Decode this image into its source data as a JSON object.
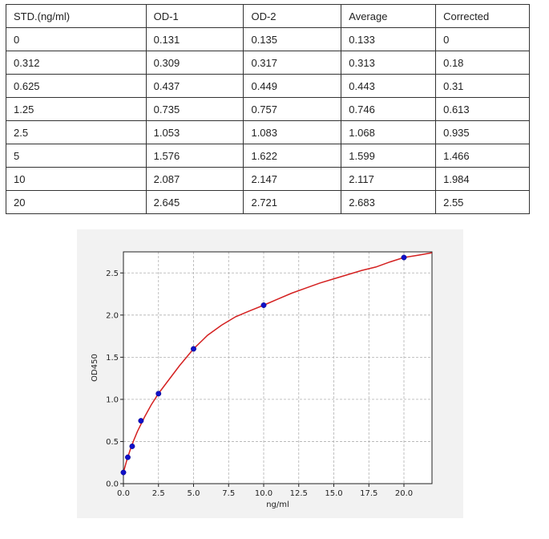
{
  "table": {
    "headers": [
      "STD.(ng/ml)",
      "OD-1",
      "OD-2",
      "Average",
      "Corrected"
    ],
    "rows": [
      [
        "0",
        "0.131",
        "0.135",
        "0.133",
        "0"
      ],
      [
        "0.312",
        "0.309",
        "0.317",
        "0.313",
        "0.18"
      ],
      [
        "0.625",
        "0.437",
        "0.449",
        "0.443",
        "0.31"
      ],
      [
        "1.25",
        "0.735",
        "0.757",
        "0.746",
        "0.613"
      ],
      [
        "2.5",
        "1.053",
        "1.083",
        "1.068",
        "0.935"
      ],
      [
        "5",
        "1.576",
        "1.622",
        "1.599",
        "1.466"
      ],
      [
        "10",
        "2.087",
        "2.147",
        "2.117",
        "1.984"
      ],
      [
        "20",
        "2.645",
        "2.721",
        "2.683",
        "2.55"
      ]
    ]
  },
  "chart_data": {
    "type": "scatter",
    "xlabel": "ng/ml",
    "ylabel": "OD450",
    "xlim": [
      0,
      22
    ],
    "ylim": [
      0,
      2.75
    ],
    "xticks": [
      0,
      2.5,
      5,
      7.5,
      10,
      12.5,
      15,
      17.5,
      20
    ],
    "xtick_labels": [
      "0.0",
      "2.5",
      "5.0",
      "7.5",
      "10.0",
      "12.5",
      "15.0",
      "17.5",
      "20.0"
    ],
    "yticks": [
      0,
      0.5,
      1.0,
      1.5,
      2.0,
      2.5
    ],
    "ytick_labels": [
      "0.0",
      "0.5",
      "1.0",
      "1.5",
      "2.0",
      "2.5"
    ],
    "grid": true,
    "points": {
      "x": [
        0,
        0.312,
        0.625,
        1.25,
        2.5,
        5,
        10,
        20
      ],
      "y": [
        0.133,
        0.313,
        0.443,
        0.746,
        1.068,
        1.599,
        2.117,
        2.683
      ],
      "color": "#1010c8"
    },
    "fit_curve": {
      "color": "#d42020",
      "x": [
        0,
        0.25,
        0.5,
        0.75,
        1,
        1.5,
        2,
        2.5,
        3,
        4,
        5,
        6,
        7,
        8,
        9,
        10,
        11,
        12,
        13,
        14,
        15,
        16,
        17,
        18,
        19,
        20,
        21,
        22
      ],
      "y": [
        0.133,
        0.285,
        0.41,
        0.52,
        0.62,
        0.79,
        0.94,
        1.07,
        1.18,
        1.4,
        1.6,
        1.76,
        1.88,
        1.98,
        2.05,
        2.117,
        2.19,
        2.26,
        2.32,
        2.38,
        2.43,
        2.48,
        2.53,
        2.57,
        2.63,
        2.683,
        2.71,
        2.74
      ]
    }
  }
}
